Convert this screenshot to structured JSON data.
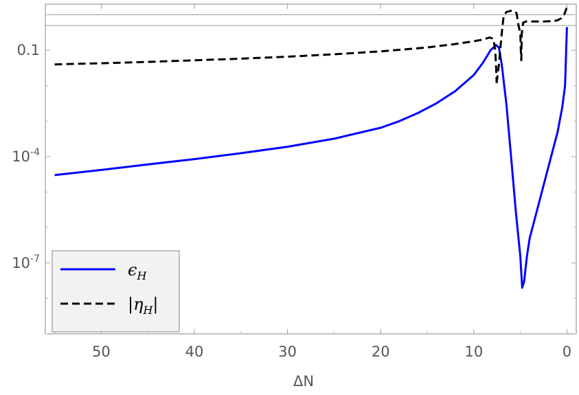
{
  "chart_data": {
    "type": "line",
    "xlabel": "ΔN",
    "x_reversed": true,
    "xlim": [
      56,
      -1
    ],
    "x_ticks": [
      50,
      40,
      30,
      20,
      10,
      0
    ],
    "y_scale": "log",
    "ylim": [
      1e-09,
      2
    ],
    "y_ticks": [
      {
        "value": 0.1,
        "label": "0.1",
        "base": "",
        "exp": ""
      },
      {
        "value": 0.0001,
        "label": "10^-4",
        "base": "10",
        "exp": "-4"
      },
      {
        "value": 1e-07,
        "label": "10^-7",
        "base": "10",
        "exp": "-7"
      }
    ],
    "reference_lines": [
      1.0,
      0.5
    ],
    "legend_position": "bottom-left",
    "series": [
      {
        "name": "ϵ_H",
        "label_main": "ϵ",
        "label_sub": "H",
        "color": "#0000ff",
        "dash": "solid",
        "points": [
          [
            55,
            3e-05
          ],
          [
            50,
            4.2e-05
          ],
          [
            45,
            6e-05
          ],
          [
            40,
            8.5e-05
          ],
          [
            35,
            0.000125
          ],
          [
            30,
            0.00019
          ],
          [
            25,
            0.00032
          ],
          [
            20,
            0.00065
          ],
          [
            18,
            0.001
          ],
          [
            16,
            0.0017
          ],
          [
            14,
            0.0032
          ],
          [
            12,
            0.007
          ],
          [
            10,
            0.02
          ],
          [
            9,
            0.045
          ],
          [
            8.2,
            0.1
          ],
          [
            7.6,
            0.14
          ],
          [
            7.3,
            0.12
          ],
          [
            7.0,
            0.04
          ],
          [
            6.5,
            0.003
          ],
          [
            6.0,
            0.0001
          ],
          [
            5.5,
            3e-06
          ],
          [
            5.0,
            1.5e-07
          ],
          [
            4.8,
            2e-08
          ],
          [
            4.6,
            3e-08
          ],
          [
            4.3,
            1.5e-07
          ],
          [
            4.0,
            5e-07
          ],
          [
            3.0,
            5e-06
          ],
          [
            2.0,
            5e-05
          ],
          [
            1.0,
            0.0005
          ],
          [
            0.5,
            0.0025
          ],
          [
            0.2,
            0.01
          ],
          [
            0.0,
            0.45
          ]
        ]
      },
      {
        "name": "|η_H|",
        "label_main": "|η",
        "label_sub": "H",
        "label_tail": "|",
        "color": "#000000",
        "dash": "dashed",
        "segments": [
          [
            [
              55,
              0.04
            ],
            [
              50,
              0.043
            ],
            [
              45,
              0.047
            ],
            [
              40,
              0.052
            ],
            [
              35,
              0.058
            ],
            [
              30,
              0.066
            ],
            [
              25,
              0.077
            ],
            [
              20,
              0.093
            ],
            [
              15,
              0.12
            ],
            [
              12,
              0.15
            ],
            [
              10,
              0.18
            ],
            [
              9,
              0.2
            ],
            [
              8.3,
              0.23
            ],
            [
              7.9,
              0.21
            ],
            [
              7.7,
              0.1
            ],
            [
              7.6,
              0.03
            ],
            [
              7.55,
              0.012
            ]
          ],
          [
            [
              7.55,
              0.012
            ],
            [
              7.3,
              0.04
            ],
            [
              7.0,
              0.3
            ],
            [
              6.8,
              0.9
            ],
            [
              6.5,
              1.2
            ],
            [
              6.0,
              1.3
            ],
            [
              5.7,
              1.3
            ],
            [
              5.4,
              1.1
            ],
            [
              5.2,
              0.5
            ],
            [
              5.0,
              0.3
            ],
            [
              4.95,
              0.1
            ],
            [
              4.9,
              0.05
            ]
          ],
          [
            [
              4.9,
              0.05
            ],
            [
              4.85,
              0.3
            ],
            [
              4.7,
              0.6
            ],
            [
              4.4,
              0.65
            ],
            [
              3.5,
              0.65
            ],
            [
              2.5,
              0.65
            ],
            [
              1.5,
              0.66
            ],
            [
              1.0,
              0.7
            ],
            [
              0.6,
              0.8
            ],
            [
              0.3,
              1.0
            ],
            [
              0.1,
              1.4
            ],
            [
              0.0,
              1.6
            ]
          ]
        ]
      }
    ]
  }
}
